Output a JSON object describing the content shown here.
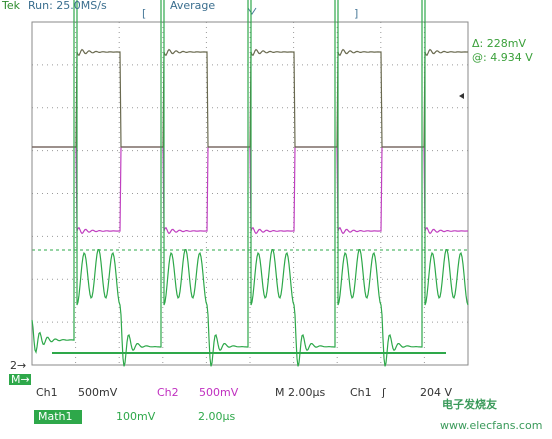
{
  "header": {
    "brand": "Tek",
    "run": "Run: 25.0MS/s",
    "mode": "Average"
  },
  "readout": {
    "delta": "Δ: 228mV",
    "at": "@: 4.934 V"
  },
  "markers": {
    "ch2": "2→",
    "math": "M→"
  },
  "footer": {
    "ch1_label": "Ch1",
    "ch1_scale": "500mV",
    "ch2_label": "Ch2",
    "ch2_scale": "500mV",
    "timebase": "M 2.00µs",
    "trigger_source": "Ch1",
    "trigger_slope": "ʃ",
    "trigger_level": "204 V"
  },
  "math": {
    "label": "Math1",
    "scale": "100mV",
    "timebase": "2.00µs"
  },
  "watermark": {
    "cn": "电子发烧友",
    "url": "www.elecfans.com"
  }
}
